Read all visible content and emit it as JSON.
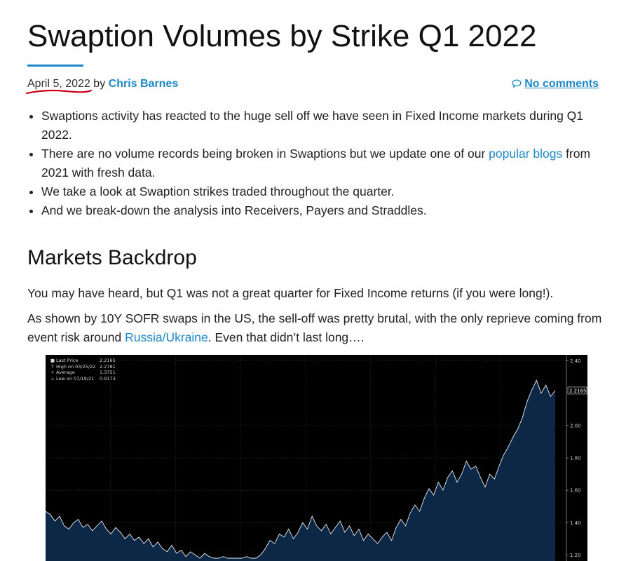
{
  "article": {
    "title": "Swaption Volumes by Strike Q1 2022",
    "date": "April 5, 2022",
    "by_text": "by",
    "author": "Chris Barnes",
    "comments": "No comments",
    "bullets": [
      {
        "text": "Swaptions activity has reacted to the huge sell off we have seen in Fixed Income markets during Q1 2022."
      },
      {
        "text_before": "There are no volume records being broken in Swaptions but we update one of our ",
        "link": "popular blogs",
        "text_after": " from 2021 with fresh data."
      },
      {
        "text": "We take a look at Swaption strikes traded throughout the quarter."
      },
      {
        "text": "And we break-down the analysis into Receivers, Payers and Straddles."
      }
    ],
    "section_heading": "Markets Backdrop",
    "paragraph1": "You may have heard, but Q1 was not a great quarter for Fixed Income returns (if you were long!).",
    "paragraph2_before": "As shown by 10Y SOFR swaps in the US, the sell-off was pretty brutal, with the only reprieve coming from event risk around ",
    "paragraph2_link": "Russia/Ukraine",
    "paragraph2_after": ". Even that didn’t last long…."
  },
  "colors": {
    "link": "#1e88c7",
    "chart_background": "#000000",
    "chart_fill": "#0d2747",
    "chart_line": "#e8eef5",
    "date_underline": "#d0021b"
  },
  "chart_data": {
    "type": "area",
    "legend": [
      {
        "symbol": "■",
        "label": "Last Price",
        "value": "2.2165"
      },
      {
        "symbol": "T",
        "label": "High on 03/25/22",
        "value": "2.2781"
      },
      {
        "symbol": "+",
        "label": "Average",
        "value": "1.3751"
      },
      {
        "symbol": "⊥",
        "label": "Low on 07/19/21",
        "value": "0.9173"
      }
    ],
    "last_price_label": "2.2165",
    "y_ticks": [
      "2.40",
      "2.00",
      "1.80",
      "1.60",
      "1.40",
      "1.20"
    ],
    "y_tick_values": [
      2.4,
      2.0,
      1.8,
      1.6,
      1.4,
      1.2
    ],
    "ylim": [
      1.18,
      2.42
    ],
    "last_price": 2.2165,
    "values": [
      1.47,
      1.45,
      1.41,
      1.44,
      1.38,
      1.36,
      1.4,
      1.42,
      1.37,
      1.39,
      1.35,
      1.38,
      1.41,
      1.36,
      1.33,
      1.37,
      1.34,
      1.3,
      1.33,
      1.29,
      1.31,
      1.27,
      1.3,
      1.25,
      1.28,
      1.24,
      1.22,
      1.26,
      1.21,
      1.23,
      1.19,
      1.22,
      1.2,
      1.18,
      1.21,
      1.19,
      1.18,
      1.18,
      1.19,
      1.18,
      1.18,
      1.18,
      1.18,
      1.19,
      1.18,
      1.18,
      1.2,
      1.24,
      1.29,
      1.27,
      1.33,
      1.31,
      1.36,
      1.3,
      1.34,
      1.4,
      1.36,
      1.44,
      1.38,
      1.35,
      1.39,
      1.33,
      1.37,
      1.41,
      1.34,
      1.38,
      1.32,
      1.36,
      1.29,
      1.33,
      1.3,
      1.27,
      1.31,
      1.34,
      1.29,
      1.37,
      1.42,
      1.38,
      1.46,
      1.51,
      1.47,
      1.55,
      1.61,
      1.57,
      1.65,
      1.6,
      1.68,
      1.72,
      1.65,
      1.7,
      1.78,
      1.73,
      1.75,
      1.68,
      1.62,
      1.7,
      1.67,
      1.75,
      1.82,
      1.87,
      1.93,
      1.98,
      2.05,
      2.15,
      2.22,
      2.28,
      2.2,
      2.25,
      2.18,
      2.2165
    ]
  }
}
